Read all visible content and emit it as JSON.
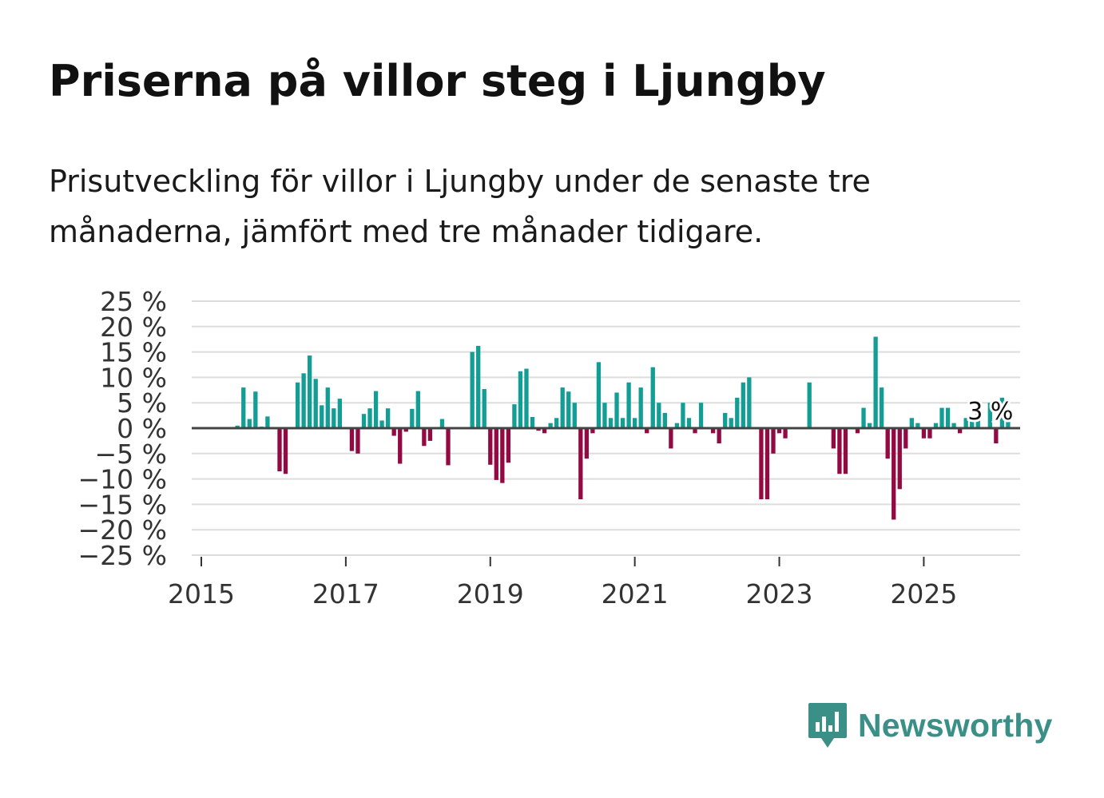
{
  "title": "Priserna på villor steg i Ljungby",
  "subtitle": "Prisutveckling för villor i Ljungby under de senaste tre månaderna, jämfört med tre månader tidigare.",
  "brand": {
    "name": "Newsworthy",
    "color": "#3a8f87",
    "icon": "bar-chart-speech-bubble-icon"
  },
  "colors": {
    "positive": "#129e95",
    "negative": "#930a43",
    "grid": "#dddddd",
    "zero_line": "#444444"
  },
  "chart_data": {
    "type": "bar",
    "title": "Priserna på villor steg i Ljungby",
    "xlabel": "",
    "ylabel": "",
    "ylim": [
      -25,
      25
    ],
    "y_ticks": [
      25,
      20,
      15,
      10,
      5,
      0,
      -5,
      -10,
      -15,
      -20,
      -25
    ],
    "y_tick_labels": [
      "25 %",
      "20 %",
      "15 %",
      "10 %",
      "5 %",
      "0 %",
      "−5 %",
      "−10 %",
      "−15 %",
      "−20 %",
      "−25 %"
    ],
    "x_ticks": [
      "2015",
      "2017",
      "2019",
      "2021",
      "2023",
      "2025"
    ],
    "x_range": [
      "2015-01",
      "2026-05"
    ],
    "start_month": "2015-07",
    "unit": "%",
    "annotation": {
      "label": "3 %",
      "month": "2025-11"
    },
    "values": [
      0.5,
      8,
      1.8,
      7.2,
      0.3,
      2.3,
      0,
      -8.5,
      -9,
      0,
      9,
      10.8,
      14.3,
      9.7,
      4.5,
      8,
      3.9,
      5.8,
      0,
      -4.5,
      -5,
      2.8,
      3.9,
      7.3,
      1.5,
      3.9,
      -1.5,
      -7,
      -0.7,
      3.8,
      7.3,
      -3.5,
      -2.5,
      0,
      1.8,
      -7.3,
      0,
      0,
      0,
      15,
      16.2,
      7.7,
      -7.2,
      -10.2,
      -10.8,
      -6.8,
      4.7,
      11.2,
      11.7,
      2.2,
      -0.5,
      -1,
      1,
      2,
      8,
      7.2,
      5,
      -14,
      -6,
      -1,
      13,
      5,
      2,
      7,
      2,
      9,
      2,
      8,
      -1,
      12,
      5,
      3,
      -4,
      1,
      5,
      2,
      -1,
      5,
      0,
      -1,
      -3,
      3,
      2,
      6,
      9,
      10,
      0,
      -14,
      -14,
      -5,
      -1,
      -2,
      0,
      0,
      0,
      9,
      0,
      0,
      0,
      -4,
      -9,
      -9,
      0,
      -1,
      4,
      1,
      18,
      8,
      -6,
      -18,
      -12,
      -4,
      2,
      1,
      -2,
      -2,
      1,
      4,
      4,
      1,
      -1,
      2,
      2,
      4,
      0,
      5,
      -3,
      6,
      3
    ]
  }
}
